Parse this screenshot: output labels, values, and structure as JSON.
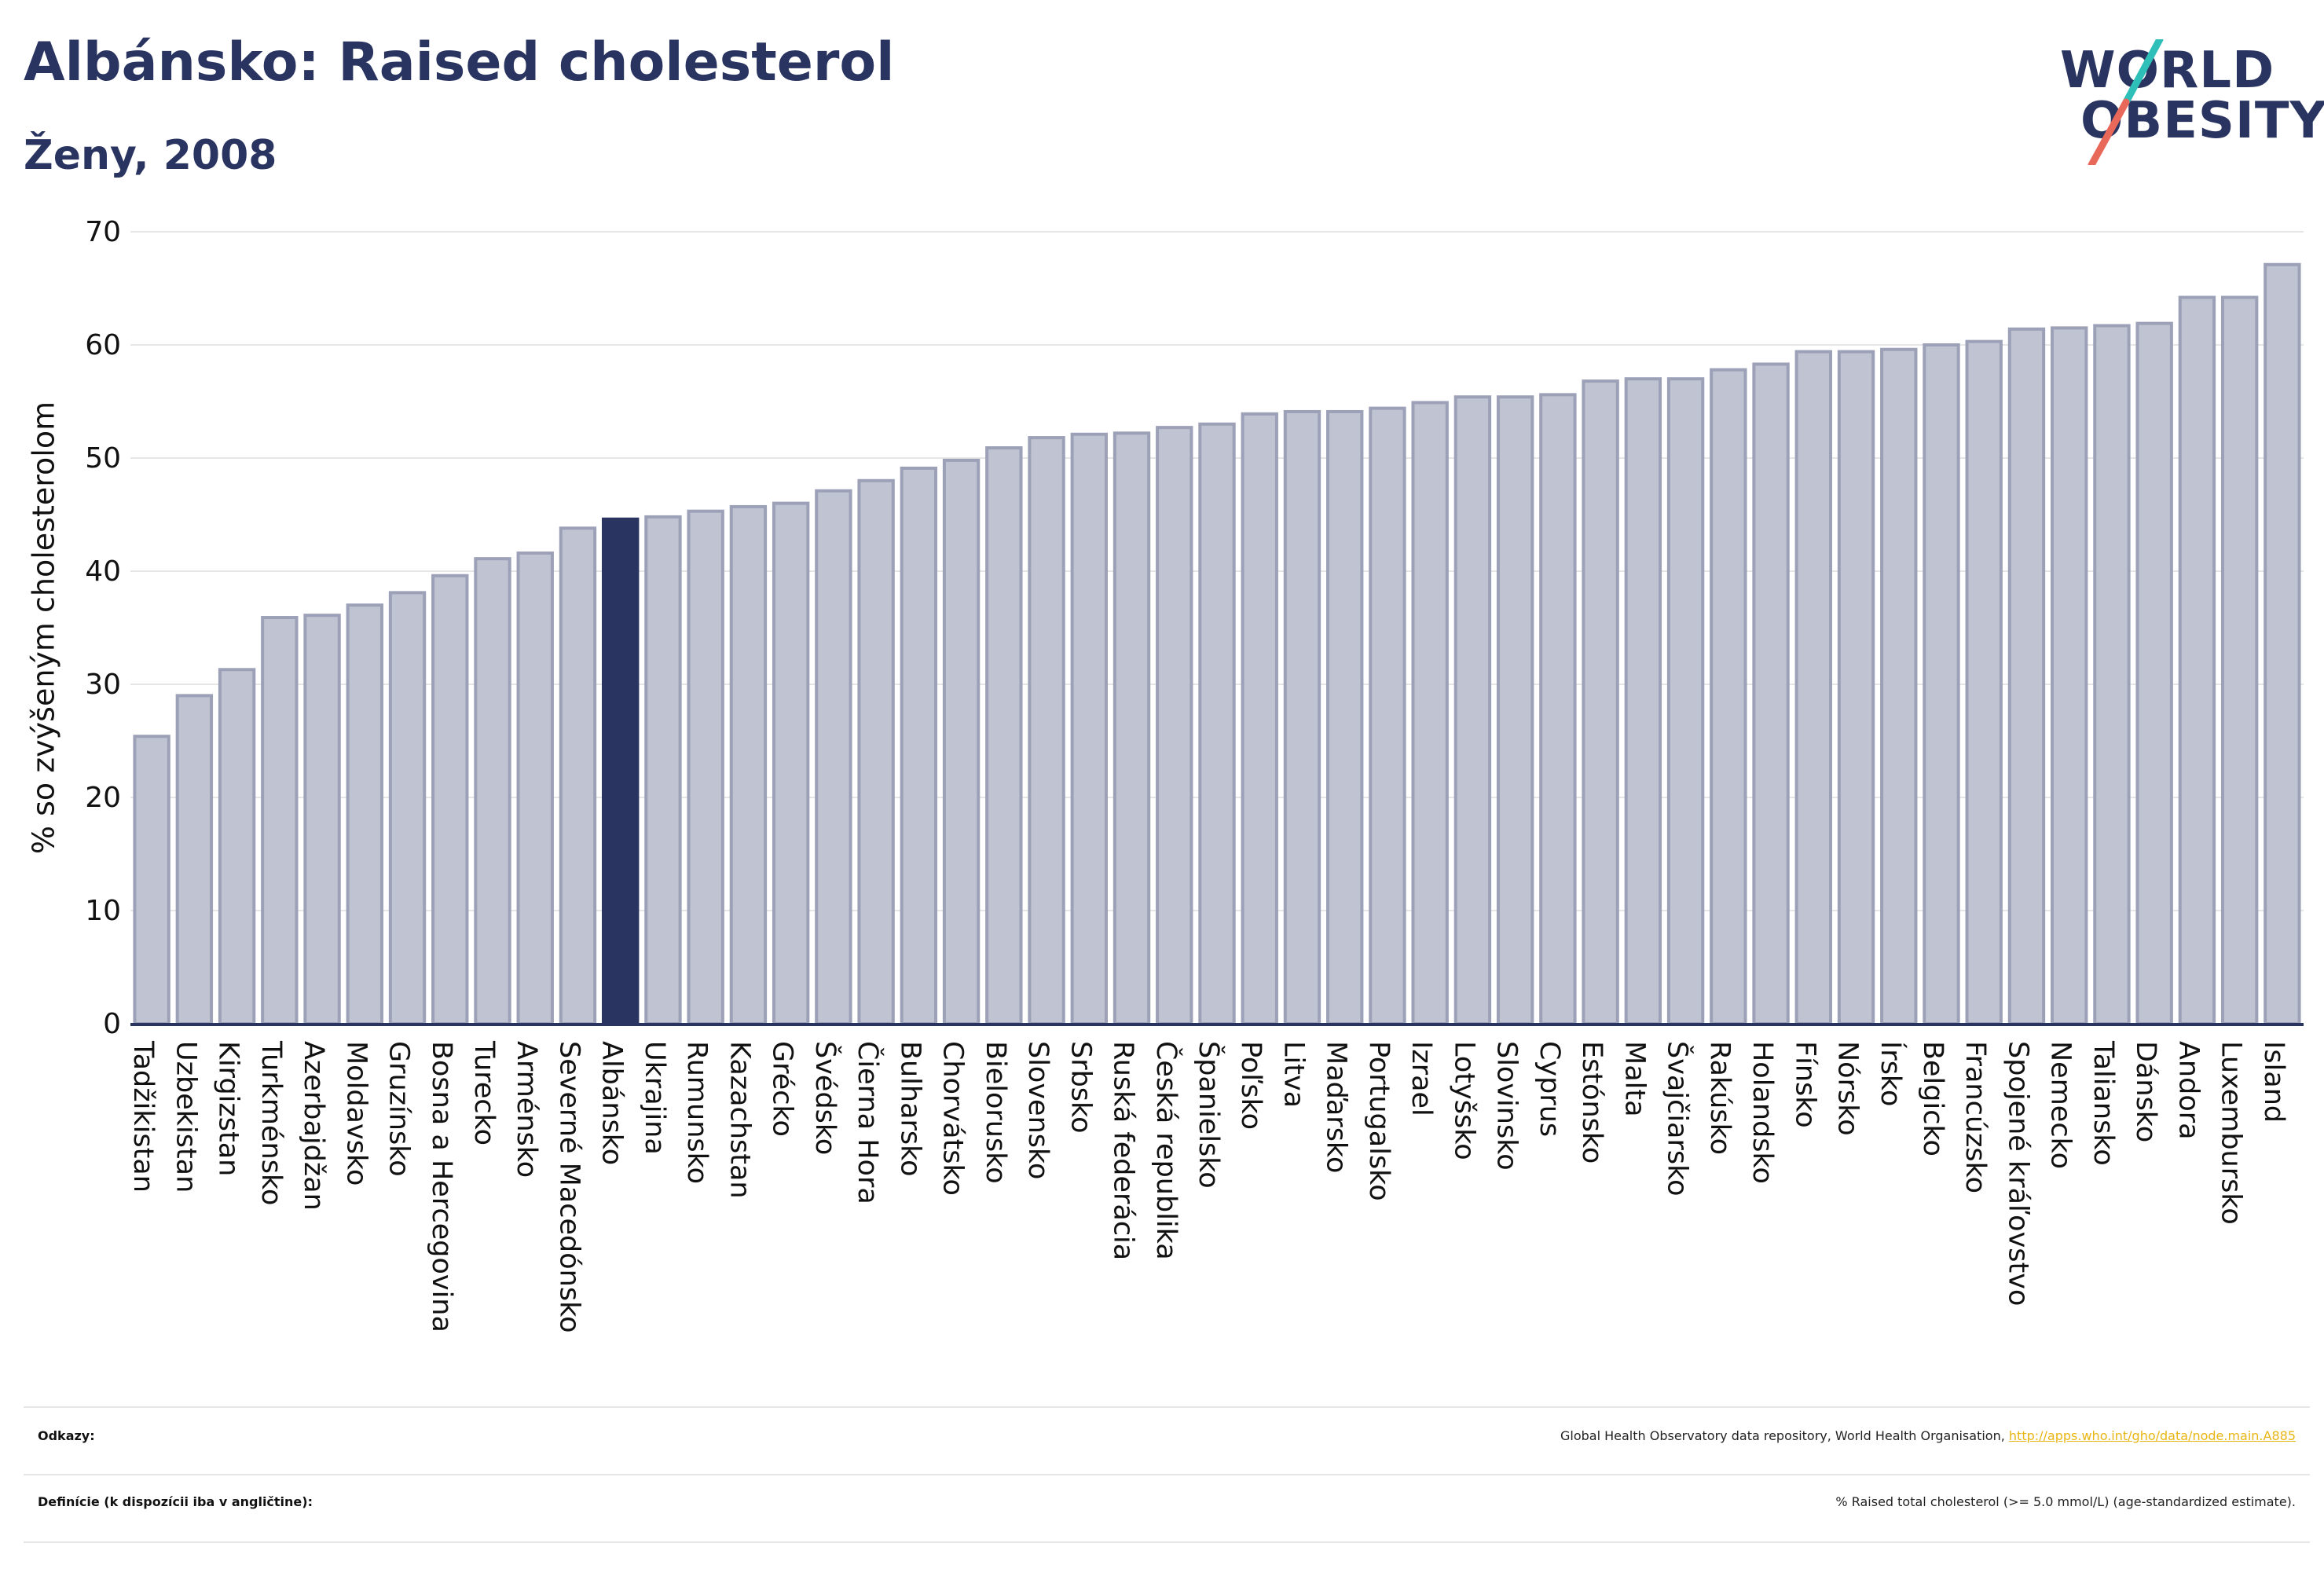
{
  "header": {
    "title": "Albánsko: Raised cholesterol",
    "subtitle": "Ženy, 2008"
  },
  "logo": {
    "line1": "WORLD",
    "line2": "OBESITY",
    "slash_colors": [
      "#2ebfb8",
      "#e8685a"
    ]
  },
  "footer": {
    "references_label": "Odkazy:",
    "references_text": "Global Health Observatory data repository, World Health Organisation,",
    "references_link": "http://apps.who.int/gho/data/node.main.A885",
    "definitions_label": "Definície (k dispozícii iba v angličtine):",
    "definitions_text": "% Raised total cholesterol (>= 5.0 mmol/L) (age-standardized estimate)."
  },
  "colors": {
    "bar": "#c0c3d1",
    "bar_stroke": "#9ca1b8",
    "highlight": "#2a3461",
    "axis": "#2a3461",
    "grid": "#e6e6e6",
    "text": "#111111"
  },
  "chart_data": {
    "type": "bar",
    "title": "Albánsko: Raised cholesterol",
    "subtitle": "Ženy, 2008",
    "xlabel": "",
    "ylabel": "% so zvýšeným cholesterolom",
    "ylim": [
      0,
      70
    ],
    "yticks": [
      0,
      10,
      20,
      30,
      40,
      50,
      60,
      70
    ],
    "grid": true,
    "highlight": "Albánsko",
    "categories": [
      "Tadžikistan",
      "Uzbekistan",
      "Kirgizstan",
      "Turkménsko",
      "Azerbajdžan",
      "Moldavsko",
      "Gruzínsko",
      "Bosna a Hercegovina",
      "Turecko",
      "Arménsko",
      "Severné Macedónsko",
      "Albánsko",
      "Ukrajina",
      "Rumunsko",
      "Kazachstan",
      "Grécko",
      "Švédsko",
      "Čierna Hora",
      "Bulharsko",
      "Chorvátsko",
      "Bielorusko",
      "Slovensko",
      "Srbsko",
      "Ruská federácia",
      "Česká republika",
      "Španielsko",
      "Poľsko",
      "Litva",
      "Maďarsko",
      "Portugalsko",
      "Izrael",
      "Lotyšsko",
      "Slovinsko",
      "Cyprus",
      "Estónsko",
      "Malta",
      "Švajčiarsko",
      "Rakúsko",
      "Holandsko",
      "Fínsko",
      "Nórsko",
      "Írsko",
      "Belgicko",
      "Francúzsko",
      "Spojené kráľovstvo",
      "Nemecko",
      "Taliansko",
      "Dánsko",
      "Andora",
      "Luxembursko",
      "Island"
    ],
    "values": [
      25.4,
      29.0,
      31.3,
      35.9,
      36.1,
      37.0,
      38.1,
      39.6,
      41.1,
      41.6,
      43.8,
      44.6,
      44.8,
      45.3,
      45.7,
      46.0,
      47.1,
      48.0,
      49.1,
      49.8,
      50.9,
      51.8,
      52.1,
      52.2,
      52.7,
      53.0,
      53.9,
      54.1,
      54.1,
      54.4,
      54.9,
      55.4,
      55.4,
      55.6,
      56.8,
      57.0,
      57.0,
      57.8,
      58.3,
      59.4,
      59.4,
      59.6,
      60.0,
      60.3,
      61.4,
      61.5,
      61.7,
      61.9,
      64.2,
      64.2,
      67.1
    ]
  }
}
